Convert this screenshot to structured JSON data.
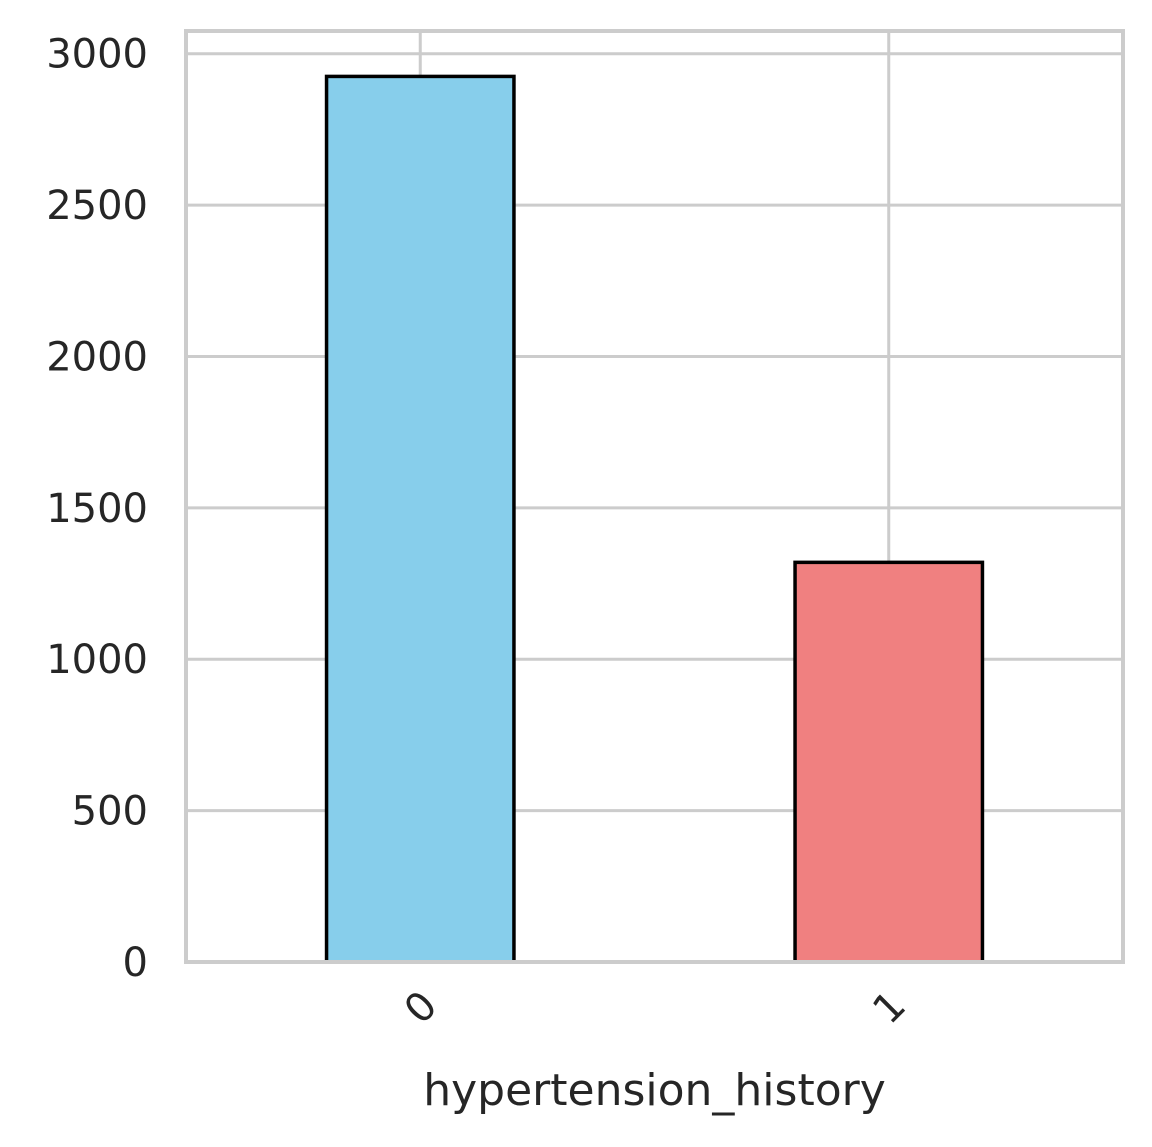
{
  "chart_data": {
    "type": "bar",
    "categories": [
      "0",
      "1"
    ],
    "values": [
      2925,
      1320
    ],
    "colors": [
      "#87CEEB",
      "#F08080"
    ],
    "edge_color": "#000000",
    "title": "",
    "xlabel": "hypertension_history",
    "ylabel": "",
    "ylim": [
      0,
      3075
    ],
    "yticks": [
      0,
      500,
      1000,
      1500,
      2000,
      2500,
      3000
    ],
    "ytick_labels": [
      "0",
      "500",
      "1000",
      "1500",
      "2000",
      "2500",
      "3000"
    ],
    "xtick_rotation_deg": -45,
    "grid": true,
    "grid_color": "#cccccc",
    "legend": "none"
  }
}
